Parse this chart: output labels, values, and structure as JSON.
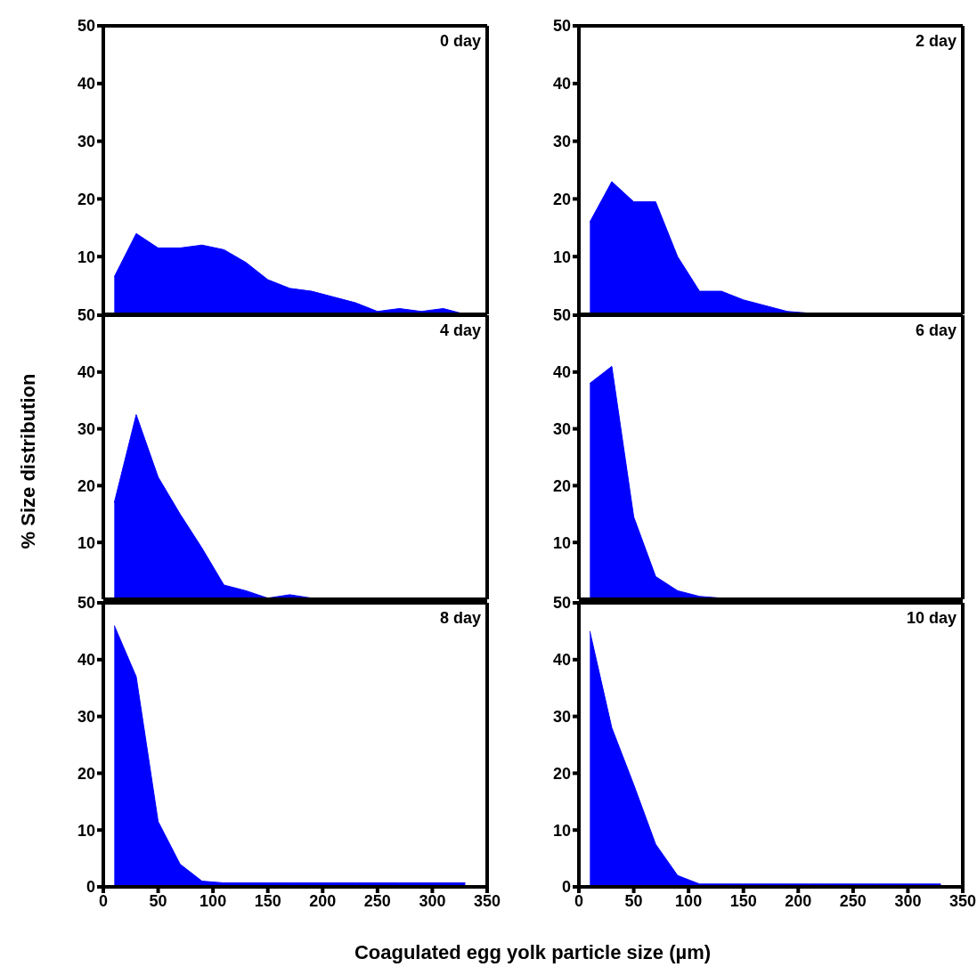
{
  "chart_data": [
    {
      "type": "area",
      "title": "0 day",
      "x": [
        10,
        30,
        50,
        70,
        90,
        110,
        130,
        150,
        170,
        190,
        210,
        230,
        250,
        270,
        290,
        310,
        330
      ],
      "values": [
        6.5,
        14,
        11.5,
        11.5,
        12,
        11.2,
        9,
        6,
        4.5,
        4,
        3,
        2,
        0.5,
        1,
        0.5,
        1,
        0
      ],
      "color": "#0000ff",
      "xlim": [
        0,
        350
      ],
      "xticks": [
        0,
        50,
        100,
        150,
        200,
        250,
        300,
        350
      ],
      "ylim": [
        0,
        50
      ],
      "yticks": [
        10,
        20,
        30,
        40,
        50
      ],
      "tick_labels": "y"
    },
    {
      "type": "area",
      "title": "2 day",
      "x": [
        10,
        30,
        50,
        70,
        90,
        110,
        130,
        150,
        170,
        190,
        210,
        230,
        250,
        270,
        290,
        310,
        330
      ],
      "values": [
        16,
        23,
        19.5,
        19.5,
        10,
        4,
        4,
        2.5,
        1.5,
        0.5,
        0.2,
        0,
        0,
        0,
        0,
        0,
        0
      ],
      "color": "#0000ff",
      "xlim": [
        0,
        350
      ],
      "xticks": [
        0,
        50,
        100,
        150,
        200,
        250,
        300,
        350
      ],
      "ylim": [
        0,
        50
      ],
      "yticks": [
        10,
        20,
        30,
        40,
        50
      ],
      "tick_labels": "y"
    },
    {
      "type": "area",
      "title": "4 day",
      "ylabel": "% Size distribution",
      "x": [
        10,
        30,
        50,
        70,
        90,
        110,
        130,
        150,
        170,
        190,
        210,
        230,
        250,
        270,
        290,
        310,
        330
      ],
      "values": [
        17,
        32.5,
        21.5,
        15,
        9,
        2.5,
        1.5,
        0.2,
        0.8,
        0.2,
        0,
        0,
        0,
        0,
        0,
        0,
        0
      ],
      "color": "#0000ff",
      "xlim": [
        0,
        350
      ],
      "xticks": [
        0,
        50,
        100,
        150,
        200,
        250,
        300,
        350
      ],
      "ylim": [
        0,
        50
      ],
      "yticks": [
        10,
        20,
        30,
        40,
        50
      ],
      "tick_labels": "y"
    },
    {
      "type": "area",
      "title": "6 day",
      "x": [
        10,
        30,
        50,
        70,
        90,
        110,
        130,
        150,
        170,
        190,
        210,
        230,
        250,
        270,
        290,
        310,
        330
      ],
      "values": [
        38,
        41,
        14.5,
        4,
        1.5,
        0.5,
        0.2,
        0,
        0,
        0,
        0,
        0,
        0,
        0,
        0,
        0,
        0
      ],
      "color": "#0000ff",
      "xlim": [
        0,
        350
      ],
      "xticks": [
        0,
        50,
        100,
        150,
        200,
        250,
        300,
        350
      ],
      "ylim": [
        0,
        50
      ],
      "yticks": [
        10,
        20,
        30,
        40,
        50
      ],
      "tick_labels": "y"
    },
    {
      "type": "area",
      "title": "8 day",
      "xlabel": "Coagulated egg yolk particle size (µm)",
      "x": [
        10,
        30,
        50,
        70,
        90,
        110,
        130,
        150,
        170,
        190,
        210,
        230,
        250,
        270,
        290,
        310,
        330
      ],
      "values": [
        46,
        37,
        11.5,
        4,
        1,
        0.7,
        0.7,
        0.7,
        0.7,
        0.7,
        0.7,
        0.7,
        0.7,
        0.7,
        0.7,
        0.7,
        0.7
      ],
      "color": "#0000ff",
      "xlim": [
        0,
        350
      ],
      "xticks": [
        0,
        50,
        100,
        150,
        200,
        250,
        300,
        350
      ],
      "ylim": [
        0,
        50
      ],
      "yticks": [
        0,
        10,
        20,
        30,
        40,
        50
      ]
    },
    {
      "type": "area",
      "title": "10 day",
      "x": [
        10,
        30,
        50,
        70,
        90,
        110,
        130,
        150,
        170,
        190,
        210,
        230,
        250,
        270,
        290,
        310,
        330
      ],
      "values": [
        45,
        28,
        18,
        7.5,
        2,
        0.5,
        0.5,
        0.5,
        0.5,
        0.5,
        0.5,
        0.5,
        0.5,
        0.5,
        0.5,
        0.5,
        0.5
      ],
      "color": "#0000ff",
      "xlim": [
        0,
        350
      ],
      "xticks": [
        0,
        50,
        100,
        150,
        200,
        250,
        300,
        350
      ],
      "ylim": [
        0,
        50
      ],
      "yticks": [
        0,
        10,
        20,
        30,
        40,
        50
      ]
    }
  ]
}
